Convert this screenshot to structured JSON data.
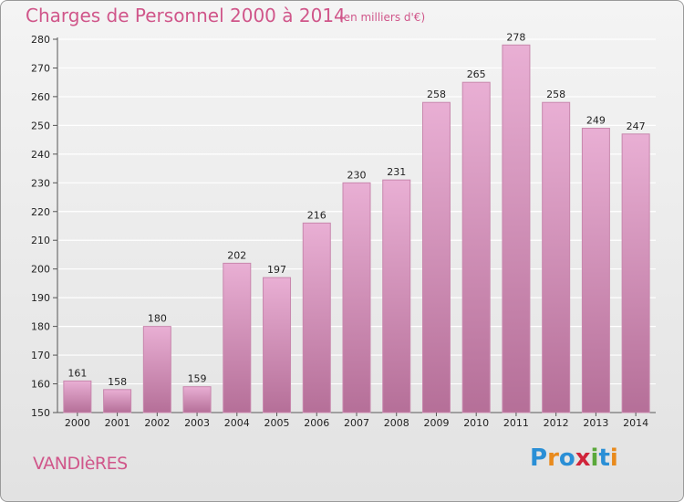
{
  "header": {
    "title": "Charges de Personnel 2000 à 2014",
    "subtitle": "(en milliers d'€)"
  },
  "footer": {
    "commune": "VANDIèRES",
    "logo_text": "Proxiti",
    "logo_letters": [
      {
        "char": "P",
        "color": "#2a8fd6"
      },
      {
        "char": "r",
        "color": "#e98a1c"
      },
      {
        "char": "o",
        "color": "#2a8fd6"
      },
      {
        "char": "x",
        "color": "#d0243a"
      },
      {
        "char": "i",
        "color": "#5aa83a"
      },
      {
        "char": "t",
        "color": "#2a8fd6"
      },
      {
        "char": "i",
        "color": "#e98a1c"
      }
    ]
  },
  "colors": {
    "bar_top": "#e9afd4",
    "bar_bottom": "#b56f98",
    "bar_stroke": "#c887ad",
    "grid": "#ffffff",
    "accent": "#d0568a"
  },
  "chart_data": {
    "type": "bar",
    "title": "Charges de Personnel 2000 à 2014",
    "subtitle": "(en milliers d'€)",
    "categories": [
      "2000",
      "2001",
      "2002",
      "2003",
      "2004",
      "2005",
      "2006",
      "2007",
      "2008",
      "2009",
      "2010",
      "2011",
      "2012",
      "2013",
      "2014"
    ],
    "values": [
      161,
      158,
      180,
      159,
      202,
      197,
      216,
      230,
      231,
      258,
      265,
      278,
      258,
      249,
      247
    ],
    "ylim": [
      150,
      280
    ],
    "yticks": [
      150,
      160,
      170,
      180,
      190,
      200,
      210,
      220,
      230,
      240,
      250,
      260,
      270,
      280
    ],
    "grid": true,
    "legend": "none"
  }
}
